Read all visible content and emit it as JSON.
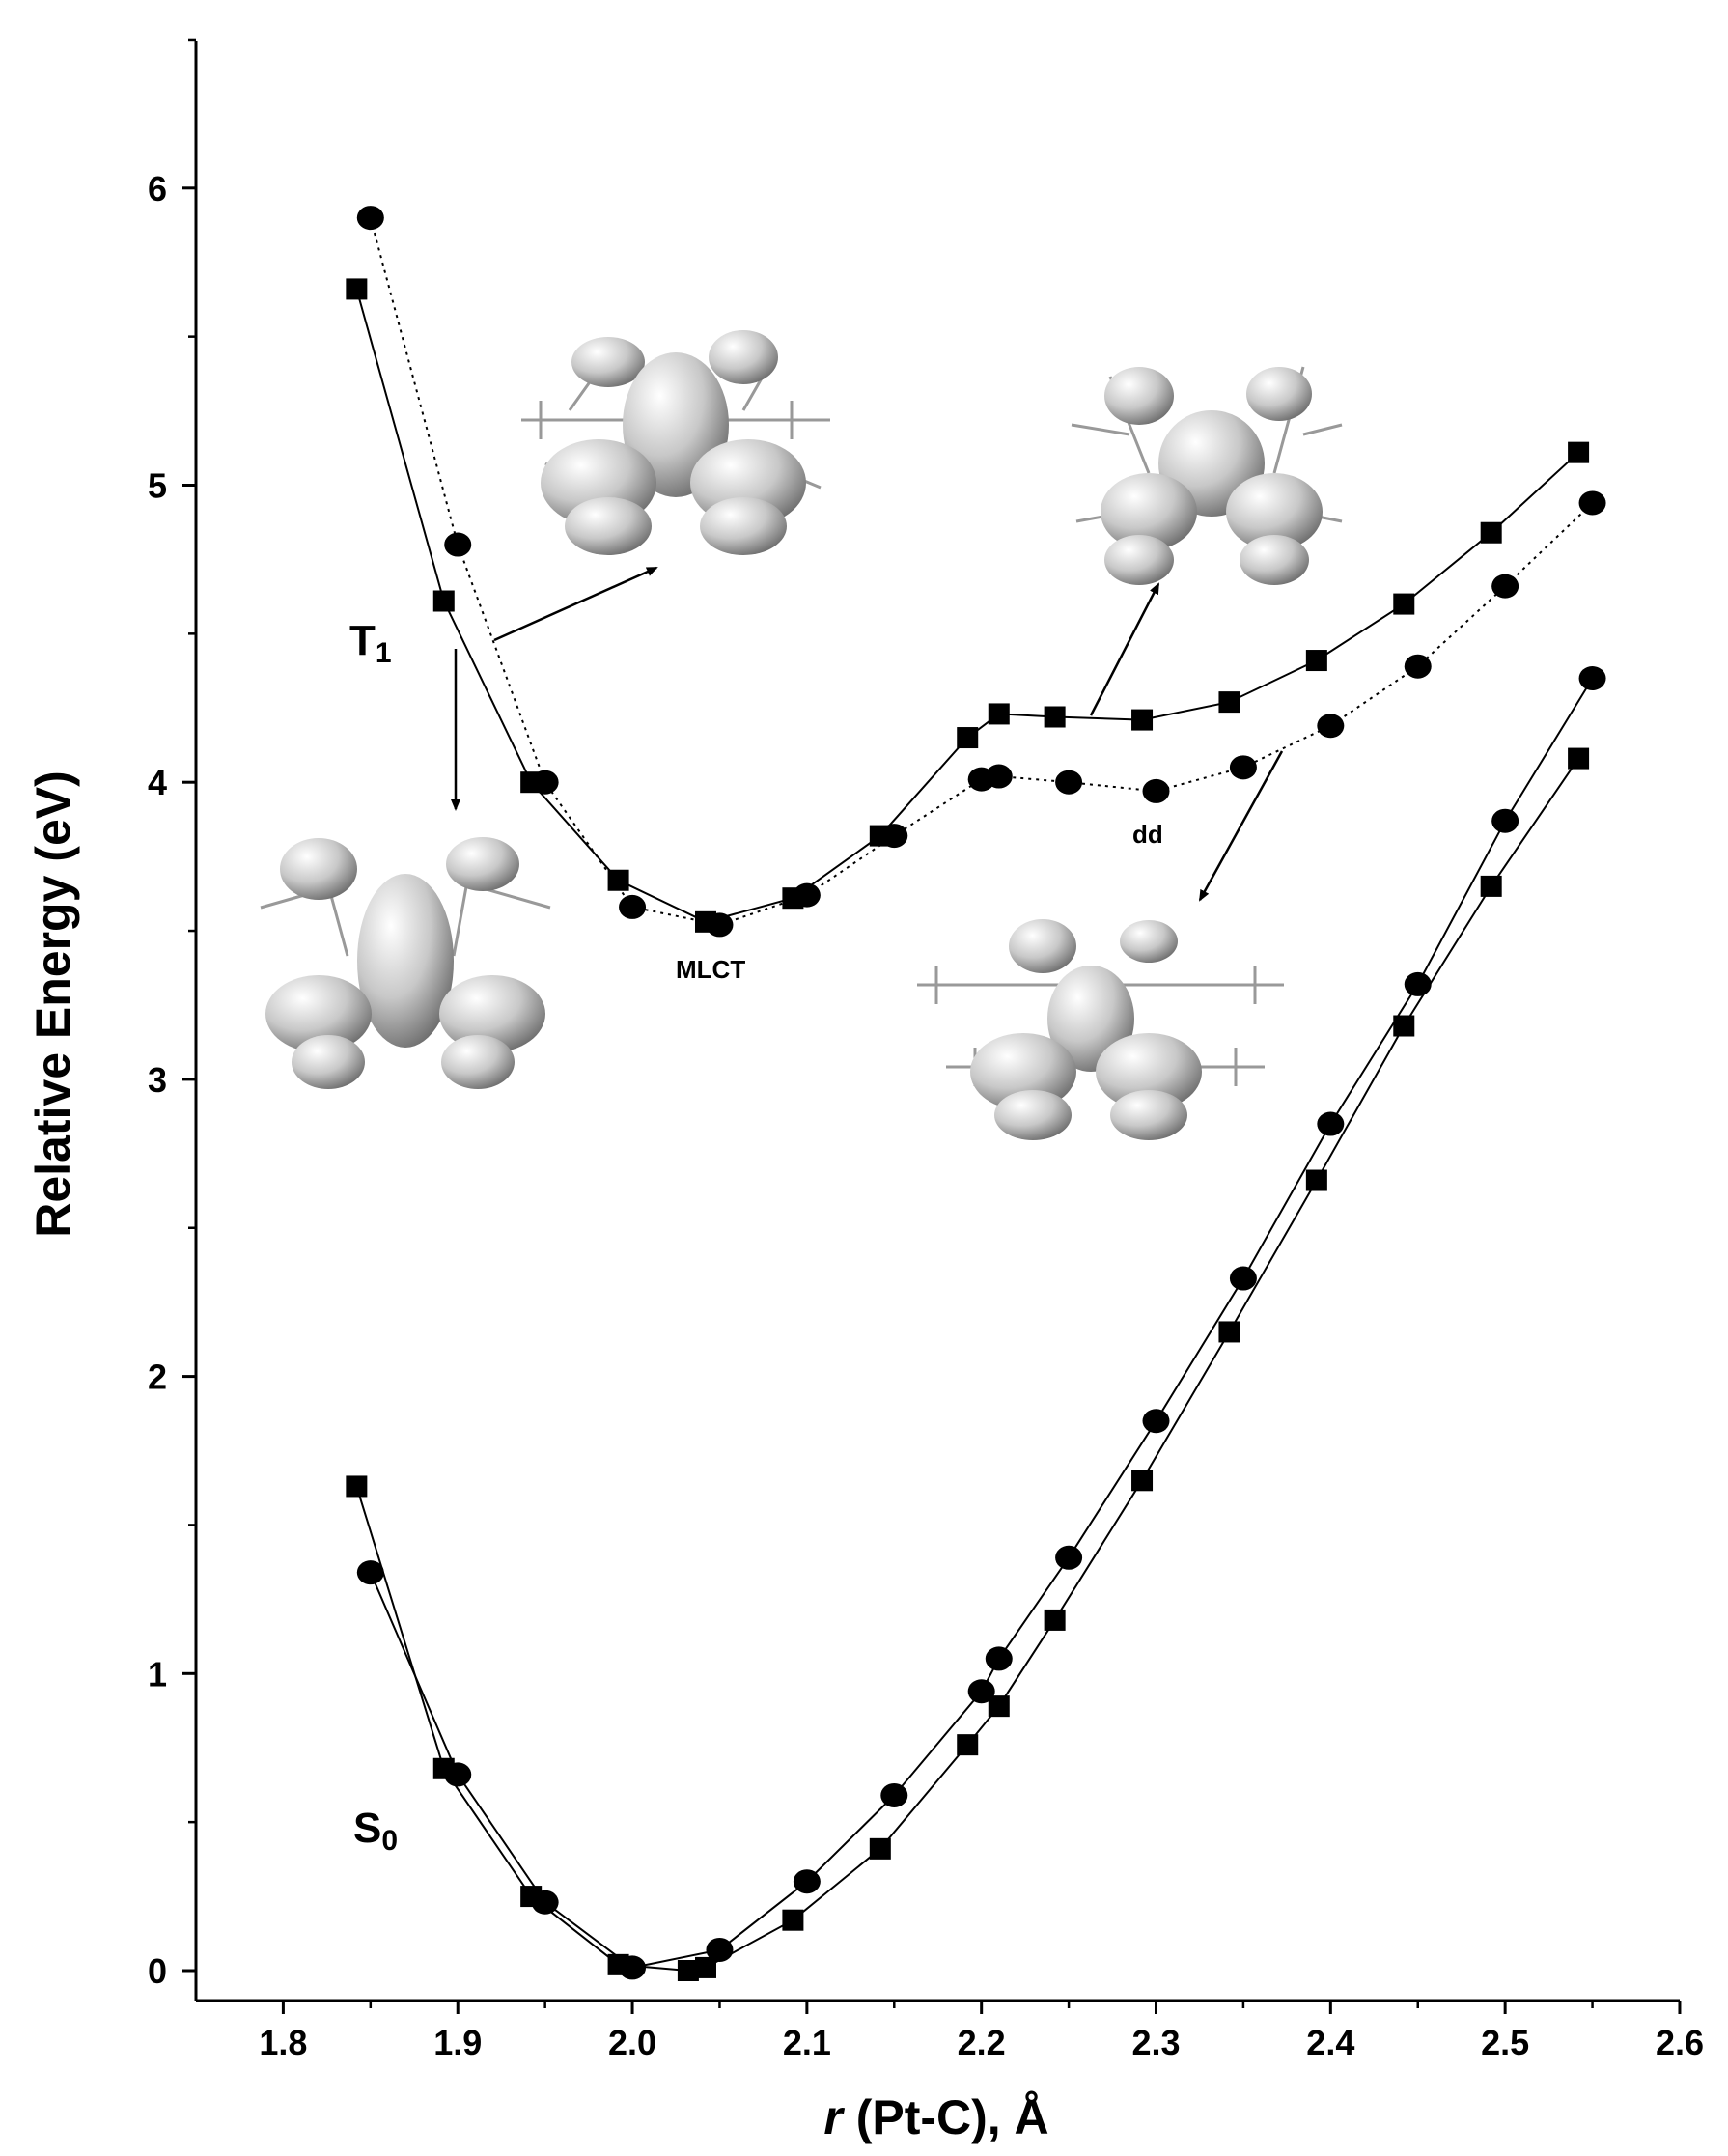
{
  "chart_data": {
    "type": "line",
    "title": "",
    "xlabel_italic": "r",
    "xlabel_rest": " (Pt-C), Å",
    "ylabel": "Relative Energy (eV)",
    "xlim": [
      1.75,
      2.6
    ],
    "ylim": [
      -0.1,
      6.5
    ],
    "x_ticks": [
      "1.8",
      "1.9",
      "2.0",
      "2.1",
      "2.2",
      "2.3",
      "2.4",
      "2.5",
      "2.6"
    ],
    "x_tick_values": [
      1.8,
      1.9,
      2.0,
      2.1,
      2.2,
      2.3,
      2.4,
      2.5,
      2.6
    ],
    "y_ticks": [
      "0",
      "1",
      "2",
      "3",
      "4",
      "5",
      "6"
    ],
    "y_tick_values": [
      0,
      1,
      2,
      3,
      4,
      5,
      6
    ],
    "grid": false,
    "series": [
      {
        "state": "T1",
        "marker": "square",
        "line": "solid",
        "x": [
          1.842,
          1.892,
          1.942,
          1.992,
          2.042,
          2.092,
          2.142,
          2.192,
          2.21,
          2.242,
          2.292,
          2.342,
          2.392,
          2.442,
          2.492,
          2.542
        ],
        "y": [
          5.66,
          4.61,
          4.0,
          3.67,
          3.53,
          3.61,
          3.82,
          4.15,
          4.23,
          4.22,
          4.21,
          4.27,
          4.41,
          4.6,
          4.84,
          5.11
        ]
      },
      {
        "state": "T1",
        "marker": "circle",
        "line": "dotted",
        "x": [
          1.85,
          1.9,
          1.95,
          2.0,
          2.05,
          2.1,
          2.15,
          2.2,
          2.21,
          2.25,
          2.3,
          2.35,
          2.4,
          2.45,
          2.5,
          2.55
        ],
        "y": [
          5.9,
          4.8,
          4.0,
          3.58,
          3.52,
          3.62,
          3.82,
          4.01,
          4.02,
          4.0,
          3.97,
          4.05,
          4.19,
          4.39,
          4.66,
          4.94
        ]
      },
      {
        "state": "S0",
        "marker": "square",
        "line": "solid",
        "x": [
          1.842,
          1.892,
          1.942,
          1.992,
          2.032,
          2.042,
          2.092,
          2.142,
          2.192,
          2.21,
          2.242,
          2.292,
          2.342,
          2.392,
          2.442,
          2.492,
          2.542
        ],
        "y": [
          1.63,
          0.68,
          0.25,
          0.02,
          0.0,
          0.01,
          0.17,
          0.41,
          0.76,
          0.89,
          1.18,
          1.65,
          2.15,
          2.66,
          3.18,
          3.65,
          4.08
        ]
      },
      {
        "state": "S0",
        "marker": "circle",
        "line": "solid",
        "x": [
          1.85,
          1.9,
          1.95,
          2.0,
          2.05,
          2.1,
          2.15,
          2.2,
          2.21,
          2.25,
          2.3,
          2.35,
          2.4,
          2.45,
          2.5,
          2.55
        ],
        "y": [
          1.34,
          0.66,
          0.23,
          0.01,
          0.07,
          0.3,
          0.59,
          0.94,
          1.05,
          1.39,
          1.85,
          2.33,
          2.85,
          3.32,
          3.87,
          4.35
        ]
      }
    ],
    "annotations": {
      "t1_main": "T",
      "t1_sub": "1",
      "s0_main": "S",
      "s0_sub": "0",
      "mlct": "MLCT",
      "dd": "dd"
    },
    "insets": [
      "orbital-isosurface-upper-left",
      "orbital-isosurface-left",
      "orbital-isosurface-upper-right",
      "orbital-isosurface-lower-right"
    ]
  }
}
